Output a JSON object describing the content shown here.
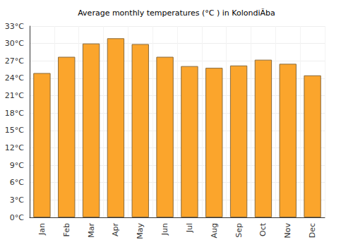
{
  "chart_data": {
    "type": "bar",
    "title": "Average monthly temperatures (°C ) in KolondiÃba",
    "categories": [
      "Jan",
      "Feb",
      "Mar",
      "Apr",
      "May",
      "Jun",
      "Jul",
      "Aug",
      "Sep",
      "Oct",
      "Nov",
      "Dec"
    ],
    "values": [
      24.9,
      27.7,
      30.0,
      30.9,
      29.9,
      27.7,
      26.1,
      25.8,
      26.2,
      27.2,
      26.5,
      24.5
    ],
    "color": "#fba52c",
    "ylim": [
      0,
      33
    ],
    "yticks": [
      {
        "value": 0,
        "label": "0°C"
      },
      {
        "value": 3,
        "label": "3°C"
      },
      {
        "value": 6,
        "label": "6°C"
      },
      {
        "value": 9,
        "label": "9°C"
      },
      {
        "value": 12,
        "label": "12°C"
      },
      {
        "value": 15,
        "label": "15°C"
      },
      {
        "value": 18,
        "label": "18°C"
      },
      {
        "value": 21,
        "label": "21°C"
      },
      {
        "value": 24,
        "label": "24°C"
      },
      {
        "value": 27,
        "label": "27°C"
      },
      {
        "value": 30,
        "label": "30°C"
      },
      {
        "value": 33,
        "label": "33°C"
      }
    ],
    "grid": true
  }
}
